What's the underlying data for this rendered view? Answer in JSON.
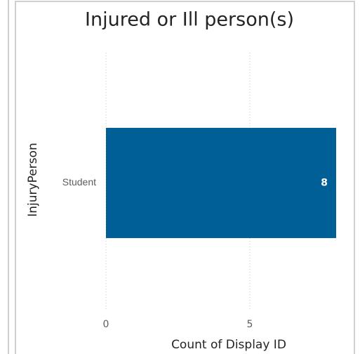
{
  "chart_data": {
    "type": "bar",
    "orientation": "horizontal",
    "title": "Injured or Ill person(s)",
    "categories": [
      "Student"
    ],
    "values": [
      8
    ],
    "color": "#005f96",
    "x_label": "Count of Display ID",
    "y_label": "InjuryPerson",
    "xlim": [
      0,
      8
    ],
    "xticks": [
      0,
      5
    ],
    "grid": true
  }
}
